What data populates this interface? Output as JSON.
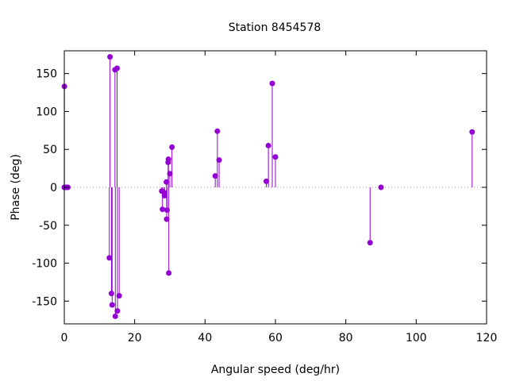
{
  "chart_data": {
    "type": "scatter",
    "style": "impulses-with-points",
    "title": "Station 8454578",
    "xlabel": "Angular speed (deg/hr)",
    "ylabel": "Phase (deg)",
    "xlim": [
      0,
      120
    ],
    "ylim": [
      -180,
      180
    ],
    "xticks": [
      0,
      20,
      40,
      60,
      80,
      100,
      120
    ],
    "yticks": [
      -150,
      -100,
      -50,
      0,
      50,
      100,
      150
    ],
    "grid": false,
    "legend": "none",
    "series_color": "#9400d3",
    "points": [
      {
        "x": 0.0,
        "y": 0
      },
      {
        "x": 0.04,
        "y": 133
      },
      {
        "x": 0.5,
        "y": 0
      },
      {
        "x": 0.8,
        "y": 0
      },
      {
        "x": 1.0,
        "y": 0
      },
      {
        "x": 12.8,
        "y": -93
      },
      {
        "x": 13.0,
        "y": 172
      },
      {
        "x": 13.4,
        "y": -140
      },
      {
        "x": 13.6,
        "y": -155
      },
      {
        "x": 14.4,
        "y": 155
      },
      {
        "x": 14.5,
        "y": -170
      },
      {
        "x": 15.0,
        "y": 157
      },
      {
        "x": 15.1,
        "y": -163
      },
      {
        "x": 15.6,
        "y": -143
      },
      {
        "x": 27.7,
        "y": -5
      },
      {
        "x": 27.9,
        "y": -29
      },
      {
        "x": 28.4,
        "y": -7
      },
      {
        "x": 28.5,
        "y": -11
      },
      {
        "x": 29.0,
        "y": 7
      },
      {
        "x": 29.1,
        "y": -42
      },
      {
        "x": 29.2,
        "y": -30
      },
      {
        "x": 29.5,
        "y": 33
      },
      {
        "x": 29.6,
        "y": 37
      },
      {
        "x": 29.7,
        "y": -113
      },
      {
        "x": 30.0,
        "y": 18
      },
      {
        "x": 30.6,
        "y": 53
      },
      {
        "x": 42.9,
        "y": 15
      },
      {
        "x": 43.5,
        "y": 74
      },
      {
        "x": 44.0,
        "y": 36
      },
      {
        "x": 57.4,
        "y": 8
      },
      {
        "x": 58.0,
        "y": 55
      },
      {
        "x": 59.1,
        "y": 137
      },
      {
        "x": 60.0,
        "y": 40
      },
      {
        "x": 86.9,
        "y": -73
      },
      {
        "x": 90.0,
        "y": 0
      },
      {
        "x": 115.9,
        "y": 73
      }
    ]
  }
}
